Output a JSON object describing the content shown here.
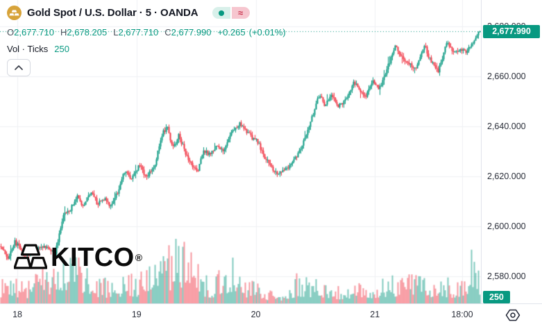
{
  "header": {
    "symbol_title": "Gold Spot / U.S. Dollar · 5 · OANDA",
    "ohlc": {
      "open_label": "O",
      "open": "2,677.710",
      "high_label": "H",
      "high": "2,678.205",
      "low_label": "L",
      "low": "2,677.710",
      "close_label": "C",
      "close": "2,677.990",
      "change": "+0.265",
      "change_percent": "(+0.01%)"
    },
    "indicator": {
      "name": "Vol · Ticks",
      "value": "250"
    },
    "chips": {
      "approx_glyph": "≈"
    }
  },
  "icons": {
    "symbol": "gold-bars-icon (amber circle, white ingots)",
    "chip_left": "market-status-dot-icon",
    "chip_right": "delayed-data-approx-icon",
    "collapse": "chevron-up-icon",
    "bottom_right": "pane-settings-hexagon-icon"
  },
  "watermark": {
    "brand": "KITCO",
    "registered_mark": "®"
  },
  "price_axis": {
    "ticks": [
      {
        "text": "2,680.000",
        "value": 2680
      },
      {
        "text": "2,660.000",
        "value": 2660
      },
      {
        "text": "2,640.000",
        "value": 2640
      },
      {
        "text": "2,620.000",
        "value": 2620
      },
      {
        "text": "2,600.000",
        "value": 2600
      },
      {
        "text": "2,580.000",
        "value": 2580
      }
    ],
    "current_price_label": {
      "text": "2,677.990",
      "value": 2677.99
    },
    "volume_scale_label": "250"
  },
  "time_axis": {
    "labels": [
      {
        "text": "18",
        "xf": 0.0361
      },
      {
        "text": "19",
        "xf": 0.284
      },
      {
        "text": "20",
        "xf": 0.5318
      },
      {
        "text": "21",
        "xf": 0.7796
      },
      {
        "text": "18:00",
        "xf": 0.961
      }
    ]
  },
  "chart_data": {
    "type": "candlestick",
    "symbol": "XAUUSD",
    "description": "Gold Spot / U.S. Dollar",
    "exchange": "OANDA",
    "interval": "5",
    "title": "Gold Spot / U.S. Dollar · 5 · OANDA",
    "legend_volume": "Vol · Ticks 250",
    "current": {
      "open": 2677.71,
      "high": 2678.205,
      "low": 2677.71,
      "close": 2677.99,
      "change": 0.265,
      "change_percent": 0.01
    },
    "y_axis": {
      "visible_min": 2569,
      "visible_max": 2690.5,
      "grid_ticks": [
        2580,
        2600,
        2620,
        2640,
        2660,
        2680
      ]
    },
    "x_axis": {
      "tick_labels": [
        "18",
        "19",
        "20",
        "21",
        "18:00"
      ],
      "grid": true
    },
    "price_path_anchors": [
      [
        0.0,
        2592
      ],
      [
        0.014,
        2587
      ],
      [
        0.029,
        2594
      ],
      [
        0.051,
        2588
      ],
      [
        0.072,
        2591
      ],
      [
        0.094,
        2592
      ],
      [
        0.113,
        2589
      ],
      [
        0.13,
        2604
      ],
      [
        0.145,
        2607
      ],
      [
        0.159,
        2612
      ],
      [
        0.171,
        2608
      ],
      [
        0.188,
        2614
      ],
      [
        0.202,
        2609
      ],
      [
        0.217,
        2611
      ],
      [
        0.228,
        2608
      ],
      [
        0.243,
        2613
      ],
      [
        0.257,
        2622
      ],
      [
        0.272,
        2619
      ],
      [
        0.289,
        2625
      ],
      [
        0.303,
        2620
      ],
      [
        0.321,
        2624
      ],
      [
        0.335,
        2636
      ],
      [
        0.347,
        2640
      ],
      [
        0.358,
        2631
      ],
      [
        0.371,
        2636
      ],
      [
        0.384,
        2630
      ],
      [
        0.399,
        2624
      ],
      [
        0.41,
        2622
      ],
      [
        0.422,
        2630
      ],
      [
        0.436,
        2629
      ],
      [
        0.451,
        2632
      ],
      [
        0.465,
        2630
      ],
      [
        0.48,
        2637
      ],
      [
        0.499,
        2641
      ],
      [
        0.517,
        2637
      ],
      [
        0.535,
        2634
      ],
      [
        0.549,
        2628
      ],
      [
        0.564,
        2624
      ],
      [
        0.578,
        2621
      ],
      [
        0.595,
        2623
      ],
      [
        0.61,
        2626
      ],
      [
        0.626,
        2631
      ],
      [
        0.64,
        2638
      ],
      [
        0.653,
        2646
      ],
      [
        0.665,
        2653
      ],
      [
        0.676,
        2648
      ],
      [
        0.689,
        2653
      ],
      [
        0.704,
        2648
      ],
      [
        0.718,
        2650
      ],
      [
        0.737,
        2658
      ],
      [
        0.749,
        2654
      ],
      [
        0.762,
        2652
      ],
      [
        0.776,
        2658
      ],
      [
        0.79,
        2655
      ],
      [
        0.806,
        2663
      ],
      [
        0.824,
        2672
      ],
      [
        0.838,
        2667
      ],
      [
        0.853,
        2665
      ],
      [
        0.867,
        2663
      ],
      [
        0.884,
        2672
      ],
      [
        0.899,
        2666
      ],
      [
        0.913,
        2662
      ],
      [
        0.932,
        2674
      ],
      [
        0.944,
        2669
      ],
      [
        0.958,
        2671
      ],
      [
        0.972,
        2670
      ],
      [
        0.987,
        2674
      ],
      [
        1.0,
        2678
      ]
    ],
    "volume_envelope_anchors": [
      [
        0.0,
        38
      ],
      [
        0.02,
        50
      ],
      [
        0.045,
        30
      ],
      [
        0.07,
        40
      ],
      [
        0.1,
        58
      ],
      [
        0.12,
        62
      ],
      [
        0.145,
        68
      ],
      [
        0.155,
        72
      ],
      [
        0.175,
        52
      ],
      [
        0.2,
        40
      ],
      [
        0.23,
        35
      ],
      [
        0.26,
        45
      ],
      [
        0.29,
        40
      ],
      [
        0.318,
        90
      ],
      [
        0.34,
        75
      ],
      [
        0.355,
        85
      ],
      [
        0.38,
        100
      ],
      [
        0.4,
        70
      ],
      [
        0.42,
        45
      ],
      [
        0.44,
        35
      ],
      [
        0.487,
        72
      ],
      [
        0.5,
        40
      ],
      [
        0.53,
        30
      ],
      [
        0.555,
        22
      ],
      [
        0.58,
        15
      ],
      [
        0.6,
        25
      ],
      [
        0.62,
        45
      ],
      [
        0.65,
        38
      ],
      [
        0.68,
        30
      ],
      [
        0.71,
        26
      ],
      [
        0.74,
        32
      ],
      [
        0.77,
        24
      ],
      [
        0.8,
        36
      ],
      [
        0.83,
        42
      ],
      [
        0.865,
        58
      ],
      [
        0.89,
        36
      ],
      [
        0.92,
        42
      ],
      [
        0.95,
        32
      ],
      [
        0.97,
        55
      ],
      [
        0.99,
        88
      ],
      [
        1.0,
        55
      ]
    ],
    "colors": {
      "up": "#089981",
      "down": "#F23645",
      "volume_up": "rgba(8,153,129,0.5)",
      "volume_down": "rgba(242,54,69,0.5)",
      "grid": "#eff1f4",
      "price_line": "#089981",
      "label_bg": "#089981",
      "symbol_icon_bg": "#d7a33a"
    }
  }
}
